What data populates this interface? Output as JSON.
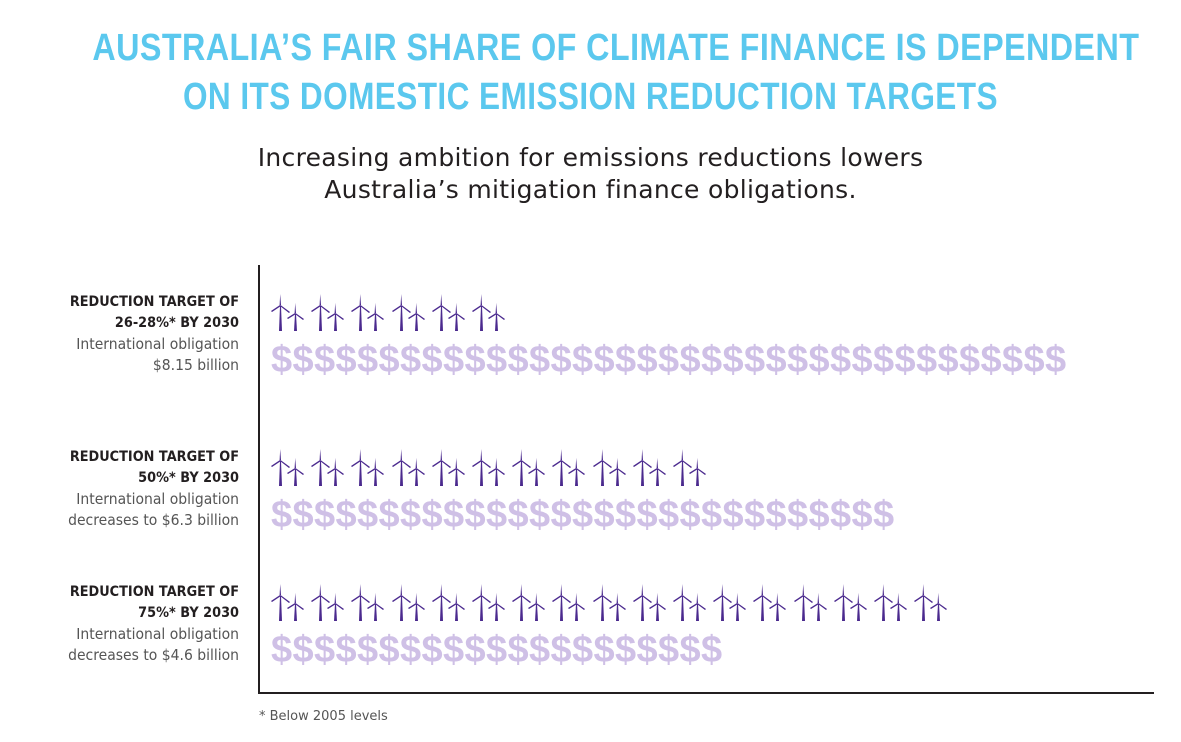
{
  "title": [
    "AUSTRALIA’S FAIR SHARE OF CLIMATE FINANCE IS DEPENDENT",
    "ON ITS DOMESTIC EMISSION REDUCTION TARGETS"
  ],
  "subtitle": [
    "Increasing ambition for emissions reductions lowers",
    "Australia’s mitigation finance obligations."
  ],
  "footnote": "* Below 2005 levels",
  "colors": {
    "title": "#5bc8ee",
    "turbine": "#4b2a8e",
    "dollar": "#cfc0e6",
    "text": "#231f20"
  },
  "icons": {
    "turbine": "wind-turbine-pair-icon",
    "dollar": "dollar-sign-icon"
  },
  "chart_data": {
    "type": "pictogram",
    "rows": [
      {
        "target_label": [
          "REDUCTION TARGET OF",
          "26-28%* BY 2030"
        ],
        "obligation_label": [
          "International obligation",
          "$8.15 billion"
        ],
        "obligation_billion": 8.15,
        "turbine_icons": 6,
        "dollar_icons": 37
      },
      {
        "target_label": [
          "REDUCTION TARGET OF",
          "50%* BY 2030"
        ],
        "obligation_label": [
          "International obligation",
          "decreases to $6.3 billion"
        ],
        "obligation_billion": 6.3,
        "turbine_icons": 11,
        "dollar_icons": 29
      },
      {
        "target_label": [
          "REDUCTION TARGET OF",
          "75%* BY 2030"
        ],
        "obligation_label": [
          "International obligation",
          "decreases to $4.6 billion"
        ],
        "obligation_billion": 4.6,
        "turbine_icons": 17,
        "dollar_icons": 21
      }
    ]
  }
}
